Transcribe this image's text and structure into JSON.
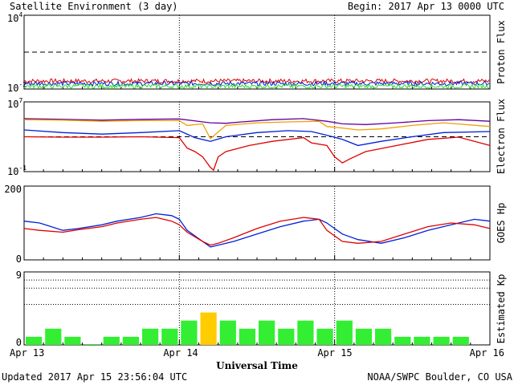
{
  "header": {
    "title": "Satellite Environment (3 day)",
    "begin": "Begin:  2017 Apr 13 0000 UTC"
  },
  "footer": {
    "updated": "Updated 2017 Apr 15 23:56:04 UTC",
    "source": "NOAA/SWPC Boulder, CO USA",
    "xlabel": "Universal Time"
  },
  "x_ticks": [
    "Apr 13",
    "Apr 14",
    "Apr 15",
    "Apr 16"
  ],
  "colors": {
    "red": "#e00000",
    "blue": "#0020d8",
    "green": "#30e030",
    "orange": "#f0a000",
    "purple": "#6000a0",
    "kp_green": "#33ee33",
    "kp_yellow": "#ffcc00"
  },
  "chart_data": [
    {
      "type": "line",
      "ylabel": "Proton Flux",
      "yscale": "log",
      "yticks": [
        "10^4",
        "10^-2"
      ],
      "ylim": [
        0.01,
        10000
      ],
      "threshold": 10,
      "xrange_days": [
        0,
        3
      ],
      "series": [
        {
          "color": "red",
          "level": 0.045
        },
        {
          "color": "blue",
          "level": 0.028
        },
        {
          "color": "green",
          "level": 0.017
        }
      ]
    },
    {
      "type": "line",
      "ylabel": "Electron Flux",
      "yscale": "log",
      "yticks": [
        "10^7",
        "10^-1"
      ],
      "ylim": [
        0.1,
        10000000
      ],
      "threshold": 1000,
      "series": [
        {
          "color": "purple",
          "x": [
            0,
            0.25,
            0.5,
            0.75,
            1.0,
            1.2,
            1.3,
            1.4,
            1.6,
            1.8,
            1.95,
            2.05,
            2.2,
            2.4,
            2.6,
            2.8,
            3.0
          ],
          "y": [
            120000,
            100000,
            80000,
            100000,
            110000,
            40000,
            35000,
            50000,
            90000,
            120000,
            60000,
            30000,
            25000,
            40000,
            70000,
            90000,
            60000
          ]
        },
        {
          "color": "orange",
          "x": [
            0,
            0.25,
            0.5,
            0.75,
            1.0,
            1.05,
            1.15,
            1.2,
            1.3,
            1.5,
            1.7,
            1.9,
            1.95,
            2.05,
            2.15,
            2.3,
            2.5,
            2.7,
            3.0
          ],
          "y": [
            90000,
            80000,
            60000,
            70000,
            70000,
            20000,
            30000,
            600,
            20000,
            40000,
            50000,
            60000,
            15000,
            10000,
            6000,
            8000,
            20000,
            40000,
            15000
          ]
        },
        {
          "color": "blue",
          "x": [
            0,
            0.25,
            0.5,
            0.75,
            1.0,
            1.1,
            1.2,
            1.3,
            1.5,
            1.7,
            1.85,
            1.95,
            2.05,
            2.15,
            2.3,
            2.5,
            2.7,
            3.0
          ],
          "y": [
            6000,
            3000,
            2000,
            3000,
            5000,
            800,
            300,
            1000,
            3000,
            5000,
            4000,
            1500,
            500,
            100,
            300,
            1000,
            3000,
            4000
          ]
        },
        {
          "color": "red",
          "x": [
            0,
            0.25,
            0.5,
            0.75,
            1.0,
            1.05,
            1.1,
            1.15,
            1.2,
            1.22,
            1.25,
            1.3,
            1.45,
            1.6,
            1.8,
            1.85,
            1.95,
            2.0,
            2.05,
            2.1,
            2.2,
            2.4,
            2.6,
            2.8,
            3.0
          ],
          "y": [
            1000,
            900,
            900,
            1000,
            800,
            50,
            20,
            5,
            0.3,
            0.15,
            5,
            20,
            100,
            300,
            800,
            200,
            100,
            5,
            1,
            3,
            20,
            100,
            500,
            900,
            100
          ]
        }
      ]
    },
    {
      "type": "line",
      "ylabel": "GOES Hp",
      "yticks": [
        "200",
        "0"
      ],
      "ylim": [
        0,
        200
      ],
      "series": [
        {
          "color": "blue",
          "x": [
            0,
            0.1,
            0.25,
            0.35,
            0.5,
            0.6,
            0.75,
            0.85,
            0.95,
            1.0,
            1.05,
            1.15,
            1.2,
            1.25,
            1.35,
            1.5,
            1.65,
            1.8,
            1.9,
            1.95,
            2.05,
            2.15,
            2.3,
            2.45,
            2.6,
            2.75,
            2.9,
            3.0
          ],
          "y": [
            105,
            100,
            80,
            85,
            95,
            105,
            115,
            125,
            120,
            110,
            80,
            50,
            35,
            40,
            50,
            70,
            90,
            105,
            110,
            100,
            70,
            55,
            45,
            60,
            80,
            95,
            110,
            105
          ]
        },
        {
          "color": "red",
          "x": [
            0,
            0.1,
            0.25,
            0.35,
            0.5,
            0.6,
            0.75,
            0.85,
            0.95,
            1.0,
            1.05,
            1.15,
            1.2,
            1.25,
            1.35,
            1.5,
            1.65,
            1.8,
            1.9,
            1.95,
            2.05,
            2.15,
            2.3,
            2.45,
            2.6,
            2.75,
            2.9,
            3.0
          ],
          "y": [
            85,
            80,
            75,
            82,
            90,
            100,
            110,
            115,
            105,
            95,
            75,
            50,
            40,
            45,
            60,
            85,
            105,
            115,
            110,
            80,
            50,
            45,
            50,
            70,
            90,
            100,
            95,
            85
          ]
        }
      ]
    },
    {
      "type": "bar",
      "ylabel": "Estimated Kp",
      "yticks": [
        "9",
        "0"
      ],
      "ylim": [
        0,
        9
      ],
      "gridlines": [
        5,
        7,
        8
      ],
      "bar_width_days": 0.125,
      "values": [
        1,
        2,
        1,
        0.1,
        1,
        1,
        2,
        2,
        3,
        4,
        3,
        2,
        3,
        2,
        3,
        2,
        3,
        2,
        2,
        1,
        1,
        1,
        1,
        0
      ],
      "highlight": [
        9
      ]
    }
  ]
}
